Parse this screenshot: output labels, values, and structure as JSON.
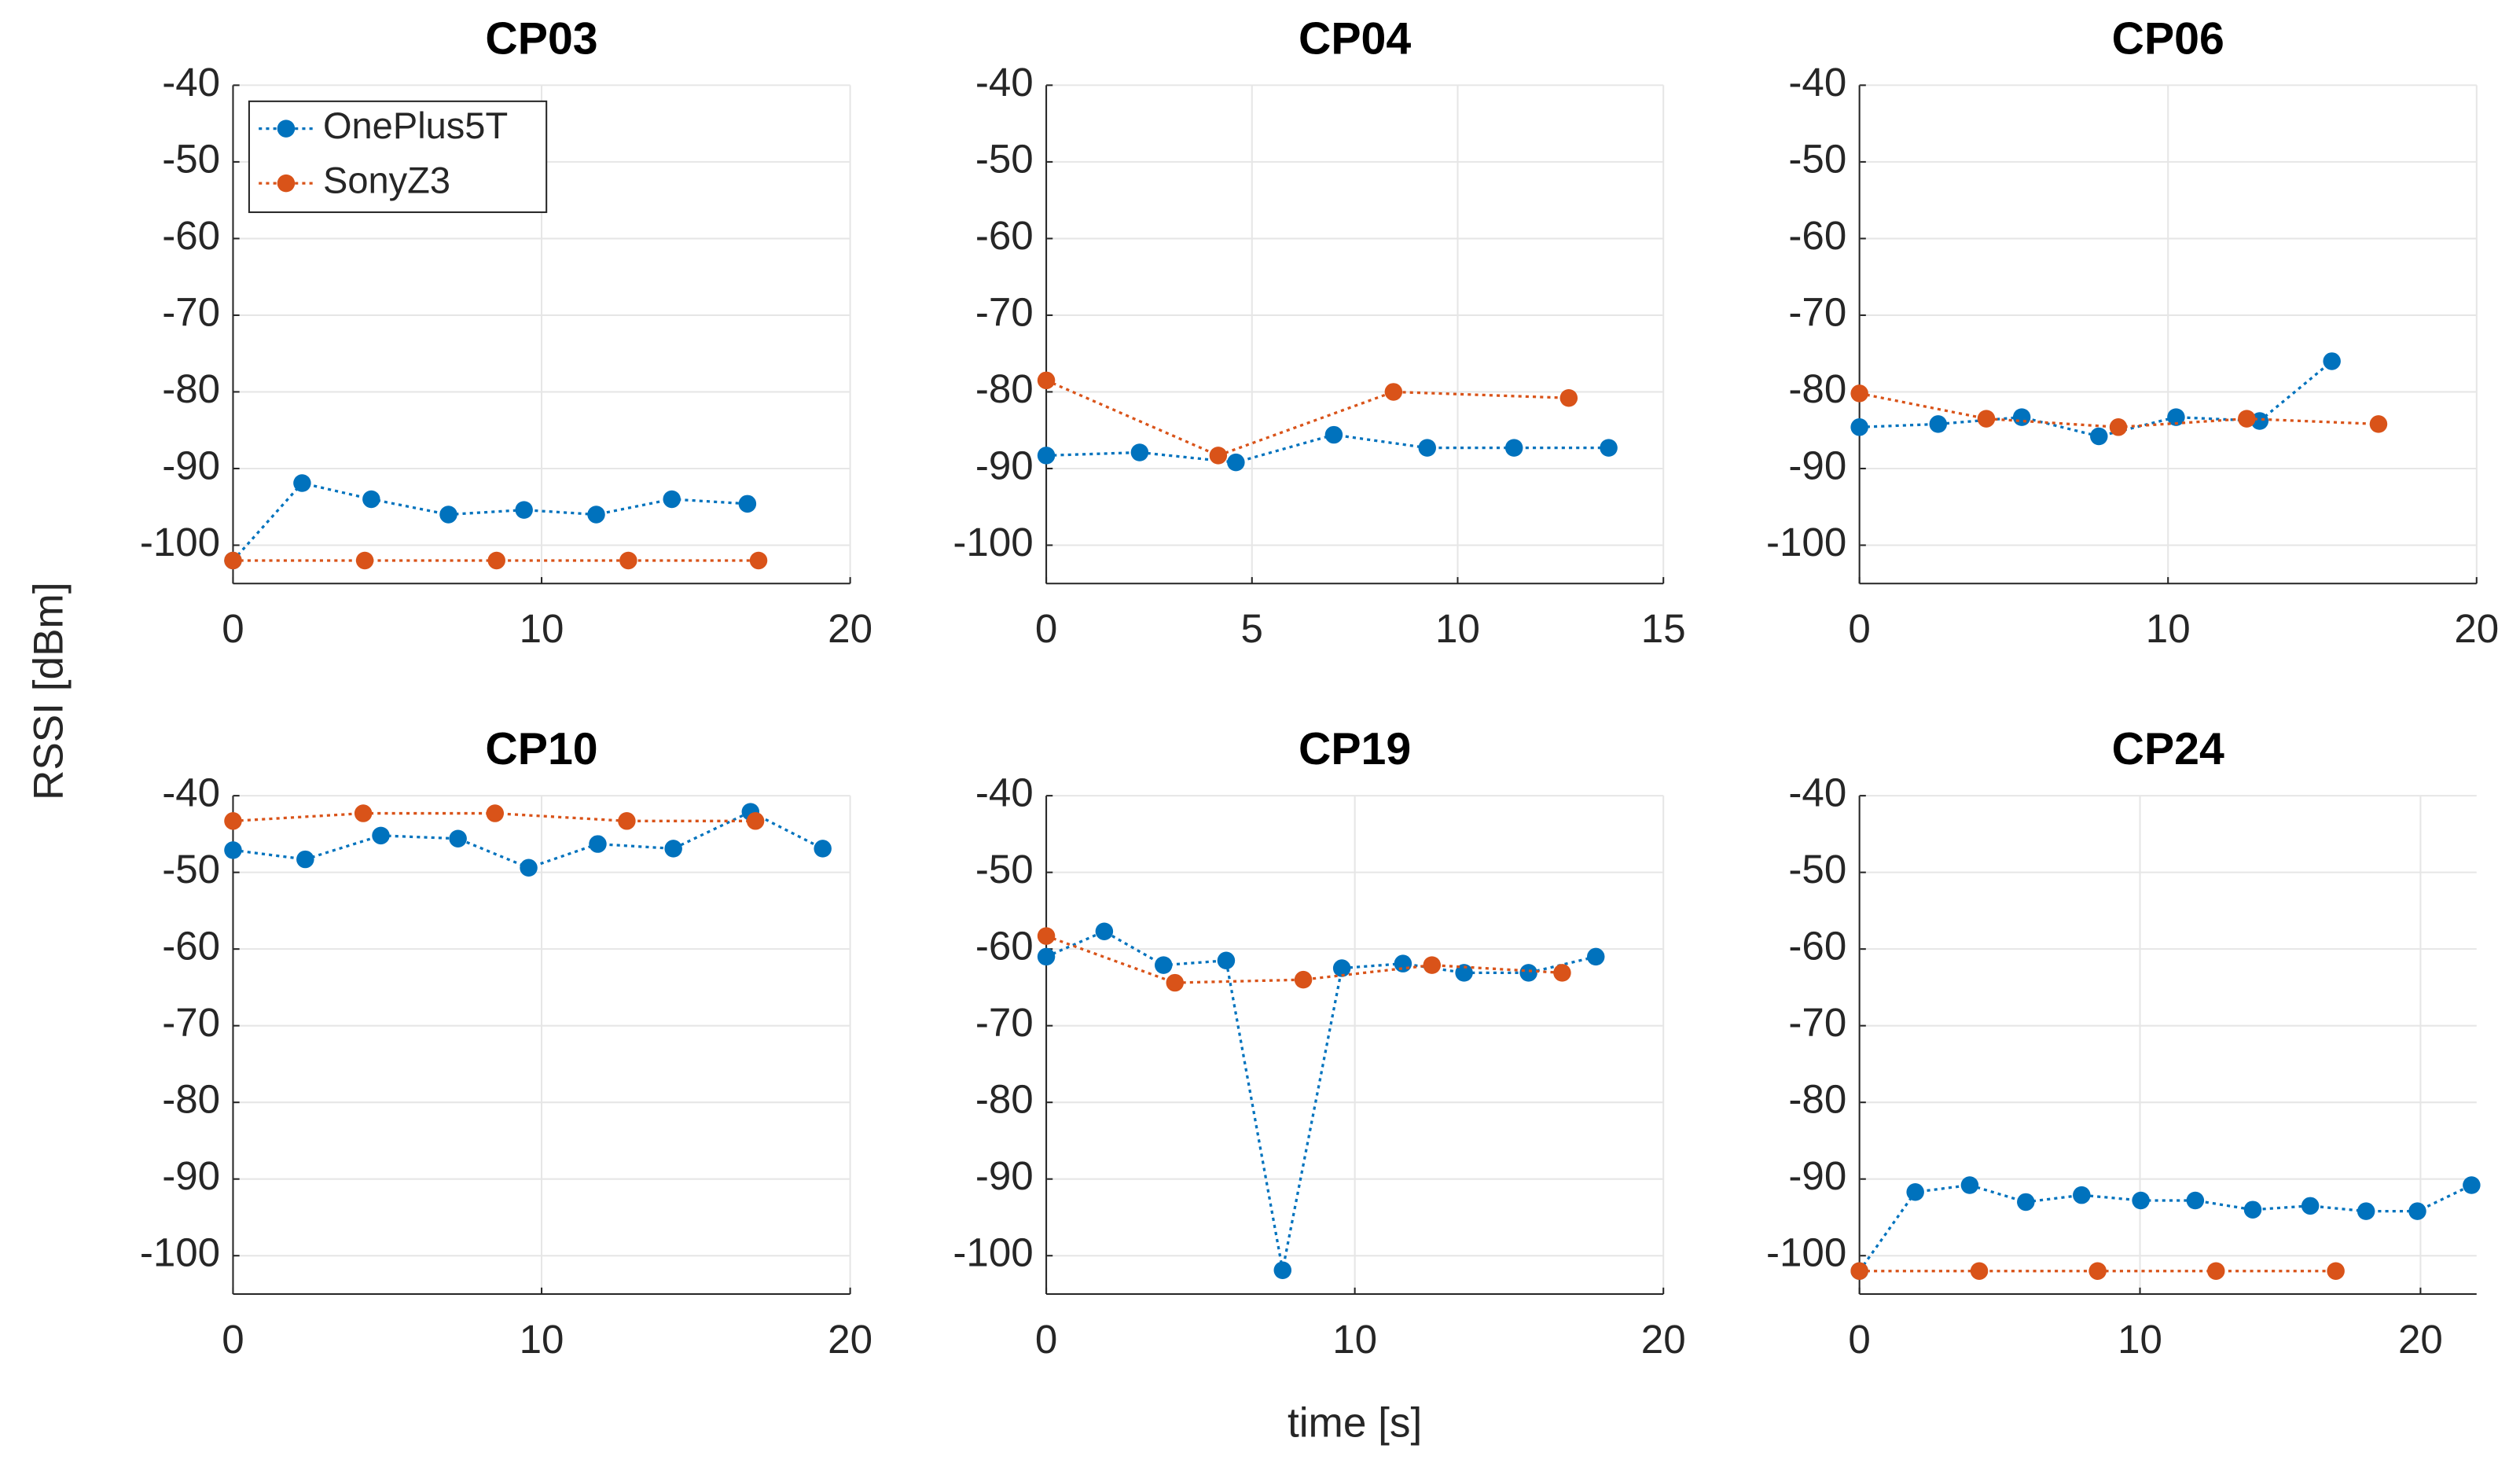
{
  "ylabel": "RSSI [dBm]",
  "xlabel": "time [s]",
  "chart_data": [
    {
      "type": "line",
      "title": "CP03",
      "legend": "upper left",
      "grid": true,
      "xlim": [
        0,
        20
      ],
      "xticks": [
        0,
        10,
        20
      ],
      "ylim": [
        -105,
        -40
      ],
      "yticks": [
        -40,
        -50,
        -60,
        -70,
        -80,
        -90,
        -100
      ],
      "series": [
        {
          "name": "OnePlus5T",
          "color": "#0072BD",
          "x": [
            0,
            2.24,
            4.48,
            6.98,
            9.43,
            11.77,
            14.22,
            16.67
          ],
          "values": [
            -102,
            -91.9,
            -94,
            -96,
            -95.4,
            -96,
            -94,
            -94.6
          ]
        },
        {
          "name": "SonyZ3",
          "color": "#D95319",
          "x": [
            0,
            4.27,
            8.54,
            12.81,
            17.03
          ],
          "values": [
            -102,
            -102,
            -102,
            -102,
            -102
          ]
        }
      ]
    },
    {
      "type": "line",
      "title": "CP04",
      "grid": true,
      "xlim": [
        0,
        15
      ],
      "xticks": [
        0,
        5,
        10,
        15
      ],
      "ylim": [
        -105,
        -40
      ],
      "yticks": [
        -40,
        -50,
        -60,
        -70,
        -80,
        -90,
        -100
      ],
      "series": [
        {
          "color": "#0072BD",
          "x": [
            0,
            2.27,
            4.61,
            6.99,
            9.26,
            11.37,
            13.67
          ],
          "values": [
            -88.3,
            -87.9,
            -89.2,
            -85.6,
            -87.3,
            -87.3,
            -87.3
          ]
        },
        {
          "color": "#D95319",
          "x": [
            0,
            4.18,
            8.44,
            12.7
          ],
          "values": [
            -78.5,
            -88.3,
            -80,
            -80.8
          ]
        }
      ]
    },
    {
      "type": "line",
      "title": "CP06",
      "grid": true,
      "xlim": [
        0,
        20
      ],
      "xticks": [
        0,
        10,
        20
      ],
      "ylim": [
        -105,
        -40
      ],
      "yticks": [
        -40,
        -50,
        -60,
        -70,
        -80,
        -90,
        -100
      ],
      "series": [
        {
          "color": "#0072BD",
          "x": [
            0,
            2.55,
            5.26,
            7.76,
            10.26,
            12.97,
            15.31
          ],
          "values": [
            -84.6,
            -84.2,
            -83.3,
            -85.8,
            -83.3,
            -83.8,
            -76
          ]
        },
        {
          "color": "#D95319",
          "x": [
            0,
            4.11,
            8.39,
            12.55,
            16.82
          ],
          "values": [
            -80.2,
            -83.5,
            -84.6,
            -83.5,
            -84.2
          ]
        }
      ]
    },
    {
      "type": "line",
      "title": "CP10",
      "grid": true,
      "xlim": [
        0,
        20
      ],
      "xticks": [
        0,
        10,
        20
      ],
      "ylim": [
        -105,
        -40
      ],
      "yticks": [
        -40,
        -50,
        -60,
        -70,
        -80,
        -90,
        -100
      ],
      "series": [
        {
          "color": "#0072BD",
          "x": [
            0,
            2.34,
            4.79,
            7.29,
            9.58,
            11.82,
            14.27,
            16.77,
            19.11
          ],
          "values": [
            -47.1,
            -48.3,
            -45.2,
            -45.6,
            -49.4,
            -46.3,
            -46.9,
            -42.1,
            -46.9
          ]
        },
        {
          "color": "#D95319",
          "x": [
            0,
            4.22,
            8.49,
            12.76,
            16.93
          ],
          "values": [
            -43.3,
            -42.3,
            -42.3,
            -43.3,
            -43.3
          ]
        }
      ]
    },
    {
      "type": "line",
      "title": "CP19",
      "grid": true,
      "xlim": [
        0,
        20
      ],
      "xticks": [
        0,
        10,
        20
      ],
      "ylim": [
        -105,
        -40
      ],
      "yticks": [
        -40,
        -50,
        -60,
        -70,
        -80,
        -90,
        -100
      ],
      "series": [
        {
          "color": "#0072BD",
          "x": [
            0,
            1.88,
            3.8,
            5.83,
            7.66,
            9.58,
            11.56,
            13.54,
            15.63,
            17.81
          ],
          "values": [
            -61,
            -57.7,
            -62.1,
            -61.5,
            -101.9,
            -62.5,
            -61.9,
            -63.1,
            -63.1,
            -61
          ]
        },
        {
          "color": "#D95319",
          "x": [
            0,
            4.17,
            8.33,
            12.5,
            16.72
          ],
          "values": [
            -58.3,
            -64.4,
            -64,
            -62.1,
            -63.1
          ]
        }
      ]
    },
    {
      "type": "line",
      "title": "CP24",
      "grid": true,
      "xlim": [
        0,
        22
      ],
      "xticks": [
        0,
        10,
        20
      ],
      "ylim": [
        -105,
        -40
      ],
      "yticks": [
        -40,
        -50,
        -60,
        -70,
        -80,
        -90,
        -100
      ],
      "series": [
        {
          "color": "#0072BD",
          "x": [
            0,
            1.99,
            3.93,
            5.93,
            7.92,
            10.03,
            11.97,
            14.02,
            16.07,
            18.06,
            19.89,
            21.82
          ],
          "values": [
            -102,
            -91.7,
            -90.8,
            -93,
            -92.1,
            -92.8,
            -92.8,
            -94,
            -93.5,
            -94.2,
            -94.2,
            -90.8
          ]
        },
        {
          "color": "#D95319",
          "x": [
            0,
            4.27,
            8.49,
            12.71,
            16.98
          ],
          "values": [
            -102,
            -102,
            -102,
            -102,
            -102
          ]
        }
      ]
    }
  ]
}
